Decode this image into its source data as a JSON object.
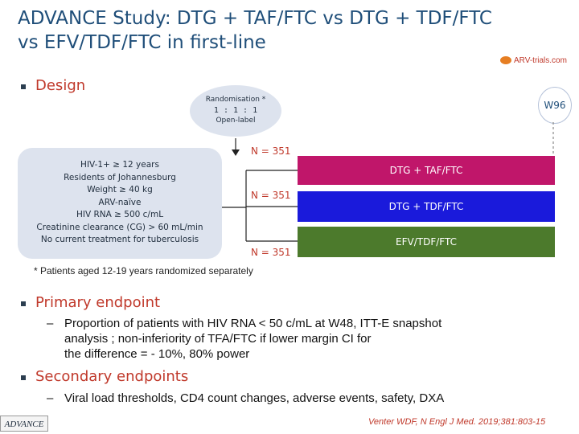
{
  "title": {
    "line1": "ADVANCE Study: DTG + TAF/FTC vs DTG + TDF/FTC",
    "line2": "vs EFV/TDF/FTC in first-line"
  },
  "logo": {
    "text": "ARV-trials.com"
  },
  "design": {
    "heading": "Design",
    "randomisation": {
      "line1": "Randomisation *",
      "line2": "1 : 1 : 1",
      "line3": "Open-label"
    },
    "week_marker": "W96",
    "criteria": [
      "HIV-1+ ≥ 12 years",
      "Residents of Johannesburg",
      "Weight ≥ 40 kg",
      "ARV-naïve",
      "HIV RNA ≥ 500 c/mL",
      "Creatinine clearance (CG) > 60 mL/min",
      "No current treatment for tuberculosis"
    ],
    "arms": [
      {
        "label": "DTG + TAF/FTC",
        "n": "N = 351",
        "color": "#c0166a"
      },
      {
        "label": "DTG + TDF/FTC",
        "n": "N = 351",
        "color": "#1a1adb"
      },
      {
        "label": "EFV/TDF/FTC",
        "n": "N = 351",
        "color": "#4c7a2c"
      }
    ],
    "note": "* Patients aged 12-19 years randomized separately"
  },
  "primary": {
    "heading": "Primary endpoint",
    "line1": "Proportion of patients with HIV RNA < 50 c/mL at W48, ITT-E snapshot",
    "line2": "analysis ; non-inferiority of TFA/FTC if lower margin CI for",
    "line3": "the difference = - 10%, 80% power"
  },
  "secondary": {
    "heading": "Secondary endpoints",
    "line1": "Viral load thresholds, CD4 count changes, adverse events, safety, DXA"
  },
  "footer": {
    "study": "ADVANCE",
    "citation": "Venter WDF, N Engl J Med. 2019;381:803-15"
  }
}
